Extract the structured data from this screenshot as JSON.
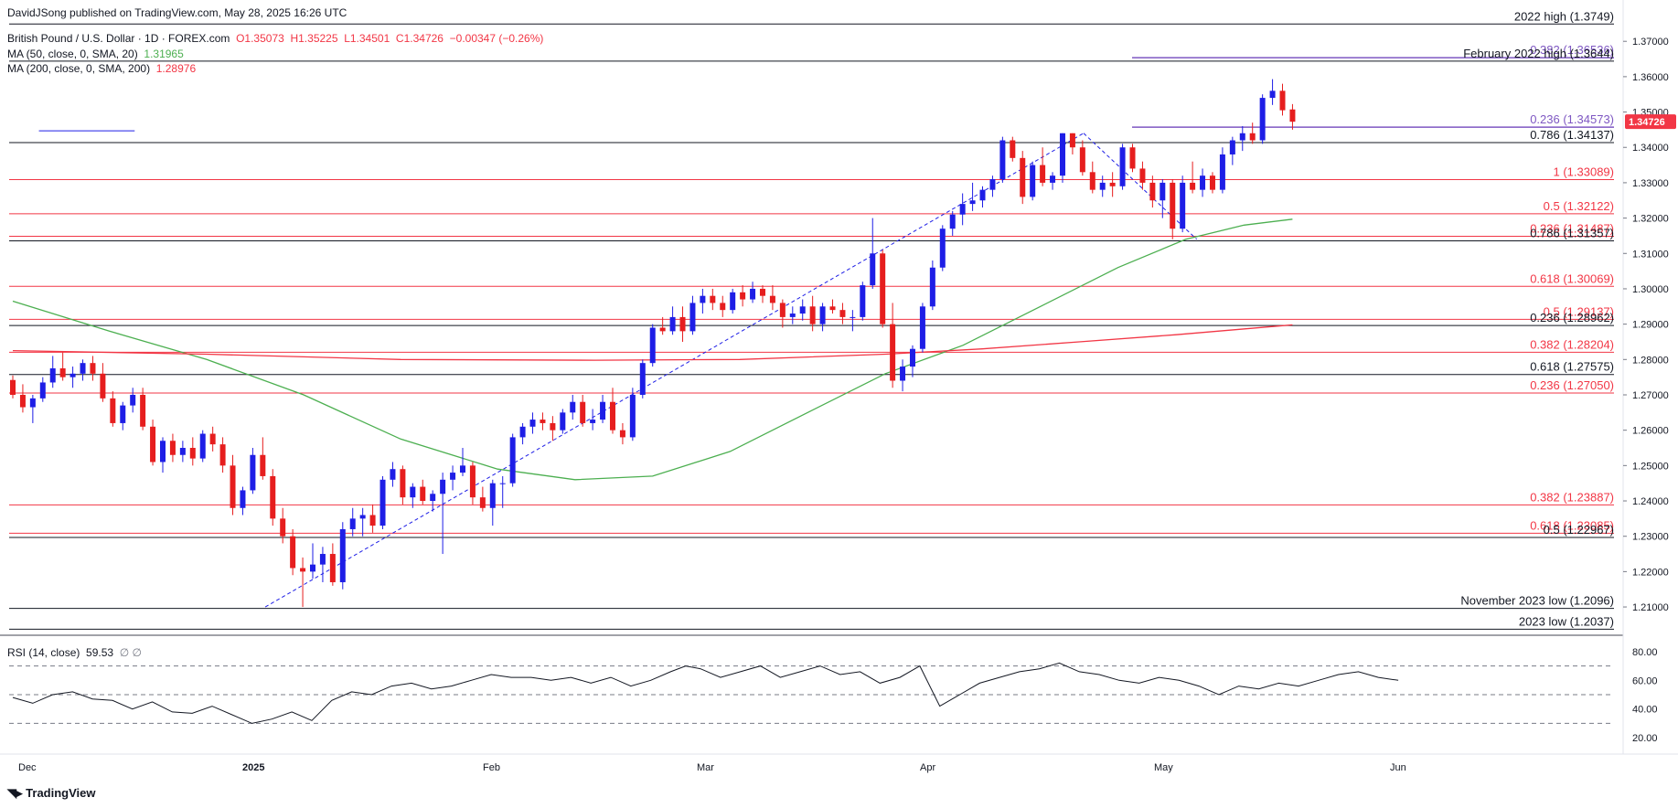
{
  "header": {
    "published": "DavidJSong published on TradingView.com, May 28, 2025 16:26 UTC",
    "symbol": "British Pound / U.S. Dollar · 1D · FOREX.com",
    "ohlc": {
      "o": "O1.35073",
      "h": "H1.35225",
      "l": "L1.34501",
      "c": "C1.34726",
      "chg": "−0.00347 (−0.26%)"
    },
    "ma50": {
      "label": "MA (50, close, 0, SMA, 20)",
      "value": "1.31965"
    },
    "ma200": {
      "label": "MA (200, close, 0, SMA, 200)",
      "value": "1.28976"
    },
    "rsi": {
      "label": "RSI (14, close)",
      "value": "59.53",
      "extra": "∅ ∅"
    }
  },
  "footer": {
    "brand": "TradingView"
  },
  "colors": {
    "up": "#1e1ee6",
    "down": "#e61e1e",
    "ma50": "#4caf50",
    "ma200": "#f23645",
    "fib": "#7e57c2",
    "text": "#131722",
    "price_tag": "#f23645"
  },
  "chart_data": {
    "type": "candlestick",
    "title": "British Pound / U.S. Dollar",
    "x_axis_labels": [
      "Dec",
      "2025",
      "Feb",
      "Mar",
      "Apr",
      "May",
      "Jun"
    ],
    "y_range": [
      1.202,
      1.376
    ],
    "y_ticks": [
      "1.21000",
      "1.22000",
      "1.23000",
      "1.24000",
      "1.25000",
      "1.26000",
      "1.27000",
      "1.28000",
      "1.29000",
      "1.30000",
      "1.31000",
      "1.32000",
      "1.33000",
      "1.34000",
      "1.35000",
      "1.36000",
      "1.37000"
    ],
    "last_price": "1.34726",
    "candles": [
      [
        1.2742,
        1.2755,
        1.269,
        1.27
      ],
      [
        1.27,
        1.273,
        1.265,
        1.2665
      ],
      [
        1.2665,
        1.27,
        1.262,
        1.269
      ],
      [
        1.269,
        1.275,
        1.268,
        1.2735
      ],
      [
        1.2735,
        1.281,
        1.272,
        1.2775
      ],
      [
        1.2775,
        1.282,
        1.274,
        1.275
      ],
      [
        1.275,
        1.278,
        1.272,
        1.276
      ],
      [
        1.276,
        1.28,
        1.274,
        1.279
      ],
      [
        1.279,
        1.281,
        1.274,
        1.276
      ],
      [
        1.276,
        1.279,
        1.268,
        1.269
      ],
      [
        1.269,
        1.271,
        1.261,
        1.262
      ],
      [
        1.262,
        1.268,
        1.26,
        1.267
      ],
      [
        1.267,
        1.272,
        1.265,
        1.27
      ],
      [
        1.27,
        1.272,
        1.26,
        1.261
      ],
      [
        1.261,
        1.263,
        1.25,
        1.251
      ],
      [
        1.251,
        1.258,
        1.248,
        1.257
      ],
      [
        1.257,
        1.259,
        1.251,
        1.253
      ],
      [
        1.253,
        1.257,
        1.251,
        1.255
      ],
      [
        1.255,
        1.258,
        1.25,
        1.252
      ],
      [
        1.252,
        1.26,
        1.251,
        1.259
      ],
      [
        1.259,
        1.261,
        1.254,
        1.256
      ],
      [
        1.256,
        1.258,
        1.248,
        1.25
      ],
      [
        1.25,
        1.253,
        1.236,
        1.238
      ],
      [
        1.238,
        1.244,
        1.236,
        1.243
      ],
      [
        1.243,
        1.255,
        1.242,
        1.253
      ],
      [
        1.253,
        1.258,
        1.246,
        1.247
      ],
      [
        1.247,
        1.249,
        1.233,
        1.235
      ],
      [
        1.235,
        1.238,
        1.228,
        1.23
      ],
      [
        1.23,
        1.232,
        1.219,
        1.221
      ],
      [
        1.221,
        1.224,
        1.21,
        1.22
      ],
      [
        1.22,
        1.228,
        1.218,
        1.222
      ],
      [
        1.222,
        1.227,
        1.217,
        1.225
      ],
      [
        1.225,
        1.228,
        1.216,
        1.217
      ],
      [
        1.217,
        1.234,
        1.215,
        1.232
      ],
      [
        1.232,
        1.238,
        1.23,
        1.235
      ],
      [
        1.235,
        1.238,
        1.23,
        1.236
      ],
      [
        1.236,
        1.239,
        1.231,
        1.233
      ],
      [
        1.233,
        1.247,
        1.232,
        1.246
      ],
      [
        1.246,
        1.251,
        1.244,
        1.249
      ],
      [
        1.249,
        1.25,
        1.239,
        1.241
      ],
      [
        1.241,
        1.245,
        1.238,
        1.244
      ],
      [
        1.244,
        1.246,
        1.239,
        1.24
      ],
      [
        1.24,
        1.243,
        1.237,
        1.242
      ],
      [
        1.242,
        1.248,
        1.225,
        1.246
      ],
      [
        1.246,
        1.25,
        1.243,
        1.248
      ],
      [
        1.248,
        1.255,
        1.247,
        1.25
      ],
      [
        1.25,
        1.251,
        1.239,
        1.241
      ],
      [
        1.241,
        1.244,
        1.237,
        1.238
      ],
      [
        1.238,
        1.246,
        1.233,
        1.245
      ],
      [
        1.245,
        1.247,
        1.238,
        1.245
      ],
      [
        1.245,
        1.259,
        1.244,
        1.258
      ],
      [
        1.258,
        1.262,
        1.256,
        1.261
      ],
      [
        1.261,
        1.265,
        1.259,
        1.263
      ],
      [
        1.263,
        1.265,
        1.26,
        1.262
      ],
      [
        1.262,
        1.264,
        1.257,
        1.26
      ],
      [
        1.26,
        1.266,
        1.259,
        1.265
      ],
      [
        1.265,
        1.27,
        1.263,
        1.268
      ],
      [
        1.268,
        1.27,
        1.261,
        1.262
      ],
      [
        1.262,
        1.266,
        1.26,
        1.263
      ],
      [
        1.263,
        1.27,
        1.262,
        1.268
      ],
      [
        1.268,
        1.272,
        1.259,
        1.26
      ],
      [
        1.26,
        1.262,
        1.256,
        1.258
      ],
      [
        1.258,
        1.272,
        1.257,
        1.27
      ],
      [
        1.27,
        1.28,
        1.269,
        1.279
      ],
      [
        1.279,
        1.29,
        1.278,
        1.289
      ],
      [
        1.289,
        1.292,
        1.287,
        1.288
      ],
      [
        1.288,
        1.295,
        1.287,
        1.292
      ],
      [
        1.292,
        1.295,
        1.285,
        1.288
      ],
      [
        1.288,
        1.298,
        1.287,
        1.296
      ],
      [
        1.296,
        1.3,
        1.293,
        1.298
      ],
      [
        1.298,
        1.3,
        1.294,
        1.296
      ],
      [
        1.296,
        1.298,
        1.292,
        1.294
      ],
      [
        1.294,
        1.3,
        1.293,
        1.299
      ],
      [
        1.299,
        1.301,
        1.295,
        1.297
      ],
      [
        1.297,
        1.302,
        1.296,
        1.3
      ],
      [
        1.3,
        1.301,
        1.296,
        1.298
      ],
      [
        1.298,
        1.301,
        1.294,
        1.296
      ],
      [
        1.296,
        1.297,
        1.289,
        1.292
      ],
      [
        1.292,
        1.295,
        1.29,
        1.293
      ],
      [
        1.293,
        1.297,
        1.291,
        1.295
      ],
      [
        1.295,
        1.298,
        1.288,
        1.29
      ],
      [
        1.29,
        1.296,
        1.288,
        1.295
      ],
      [
        1.295,
        1.297,
        1.293,
        1.294
      ],
      [
        1.294,
        1.296,
        1.29,
        1.292
      ],
      [
        1.292,
        1.294,
        1.288,
        1.292
      ],
      [
        1.292,
        1.302,
        1.291,
        1.301
      ],
      [
        1.301,
        1.32,
        1.3,
        1.31
      ],
      [
        1.31,
        1.311,
        1.289,
        1.29
      ],
      [
        1.29,
        1.296,
        1.272,
        1.274
      ],
      [
        1.274,
        1.28,
        1.271,
        1.278
      ],
      [
        1.278,
        1.284,
        1.275,
        1.283
      ],
      [
        1.283,
        1.296,
        1.282,
        1.295
      ],
      [
        1.295,
        1.308,
        1.294,
        1.306
      ],
      [
        1.306,
        1.318,
        1.305,
        1.317
      ],
      [
        1.317,
        1.322,
        1.315,
        1.321
      ],
      [
        1.321,
        1.327,
        1.318,
        1.324
      ],
      [
        1.324,
        1.33,
        1.322,
        1.325
      ],
      [
        1.325,
        1.329,
        1.323,
        1.328
      ],
      [
        1.328,
        1.332,
        1.326,
        1.331
      ],
      [
        1.331,
        1.343,
        1.33,
        1.342
      ],
      [
        1.342,
        1.343,
        1.336,
        1.337
      ],
      [
        1.337,
        1.339,
        1.324,
        1.326
      ],
      [
        1.326,
        1.336,
        1.325,
        1.335
      ],
      [
        1.335,
        1.34,
        1.329,
        1.33
      ],
      [
        1.33,
        1.333,
        1.328,
        1.332
      ],
      [
        1.332,
        1.344,
        1.33,
        1.344
      ],
      [
        1.344,
        1.344,
        1.338,
        1.34
      ],
      [
        1.34,
        1.342,
        1.332,
        1.333
      ],
      [
        1.333,
        1.336,
        1.327,
        1.328
      ],
      [
        1.328,
        1.332,
        1.326,
        1.33
      ],
      [
        1.33,
        1.333,
        1.326,
        1.329
      ],
      [
        1.329,
        1.341,
        1.328,
        1.34
      ],
      [
        1.34,
        1.341,
        1.333,
        1.334
      ],
      [
        1.334,
        1.336,
        1.328,
        1.33
      ],
      [
        1.33,
        1.332,
        1.323,
        1.325
      ],
      [
        1.325,
        1.331,
        1.32,
        1.33
      ],
      [
        1.33,
        1.331,
        1.314,
        1.317
      ],
      [
        1.317,
        1.332,
        1.316,
        1.33
      ],
      [
        1.33,
        1.336,
        1.327,
        1.328
      ],
      [
        1.328,
        1.334,
        1.326,
        1.332
      ],
      [
        1.332,
        1.333,
        1.327,
        1.328
      ],
      [
        1.328,
        1.34,
        1.327,
        1.338
      ],
      [
        1.338,
        1.343,
        1.335,
        1.342
      ],
      [
        1.342,
        1.346,
        1.339,
        1.344
      ],
      [
        1.344,
        1.347,
        1.341,
        1.342
      ],
      [
        1.342,
        1.355,
        1.341,
        1.354
      ],
      [
        1.354,
        1.3593,
        1.352,
        1.356
      ],
      [
        1.356,
        1.358,
        1.349,
        1.3505
      ],
      [
        1.35073,
        1.35225,
        1.34501,
        1.34726
      ]
    ],
    "ma50": [
      [
        0,
        1.2965
      ],
      [
        10,
        1.288
      ],
      [
        20,
        1.28
      ],
      [
        30,
        1.27
      ],
      [
        40,
        1.2575
      ],
      [
        50,
        1.249
      ],
      [
        58,
        1.246
      ],
      [
        66,
        1.247
      ],
      [
        74,
        1.254
      ],
      [
        82,
        1.265
      ],
      [
        90,
        1.276
      ],
      [
        98,
        1.284
      ],
      [
        106,
        1.295
      ],
      [
        114,
        1.306
      ],
      [
        121,
        1.314
      ],
      [
        127,
        1.318
      ],
      [
        132,
        1.3197
      ]
    ],
    "ma200": [
      [
        0,
        1.2825
      ],
      [
        20,
        1.2815
      ],
      [
        40,
        1.28
      ],
      [
        60,
        1.2798
      ],
      [
        75,
        1.28
      ],
      [
        90,
        1.2815
      ],
      [
        100,
        1.283
      ],
      [
        110,
        1.285
      ],
      [
        120,
        1.287
      ],
      [
        132,
        1.2898
      ]
    ],
    "levels": [
      {
        "label": "2022 high (1.3749)",
        "value": 1.3749,
        "color": "#131722"
      },
      {
        "label": "0.382 (1.36536)",
        "value": 1.36536,
        "color": "#7e57c2"
      },
      {
        "label": "February 2022 high (1.3644)",
        "value": 1.3644,
        "color": "#131722"
      },
      {
        "label": "0.236 (1.34573)",
        "value": 1.34573,
        "color": "#7e57c2"
      },
      {
        "label": "0.786 (1.34137)",
        "value": 1.34137,
        "color": "#131722"
      },
      {
        "label": "1 (1.33089)",
        "value": 1.33089,
        "color": "#f23645"
      },
      {
        "label": "0.5 (1.32122)",
        "value": 1.32122,
        "color": "#f23645"
      },
      {
        "label": "0.236 (1.31487)",
        "value": 1.31487,
        "color": "#f23645"
      },
      {
        "label": "0.786 (1.31357)",
        "value": 1.31357,
        "color": "#131722"
      },
      {
        "label": "0.618 (1.30069)",
        "value": 1.30069,
        "color": "#f23645"
      },
      {
        "label": "0.5 (1.29137)",
        "value": 1.29137,
        "color": "#f23645"
      },
      {
        "label": "0.236 (1.28962)",
        "value": 1.28962,
        "color": "#131722"
      },
      {
        "label": "0.382 (1.28204)",
        "value": 1.28204,
        "color": "#f23645"
      },
      {
        "label": "0.618 (1.27575)",
        "value": 1.27575,
        "color": "#131722"
      },
      {
        "label": "0.236 (1.27050)",
        "value": 1.2705,
        "color": "#f23645"
      },
      {
        "label": "0.382 (1.23887)",
        "value": 1.23887,
        "color": "#f23645"
      },
      {
        "label": "0.618 (1.23085)",
        "value": 1.23085,
        "color": "#f23645"
      },
      {
        "label": "0.5 (1.22967)",
        "value": 1.22967,
        "color": "#131722"
      },
      {
        "label": "November 2023 low (1.2096)",
        "value": 1.2096,
        "color": "#131722"
      },
      {
        "label": "2023 low (1.2037)",
        "value": 1.2037,
        "color": "#131722"
      }
    ],
    "rsi": {
      "y_range": [
        15,
        85
      ],
      "y_ticks": [
        "20.00",
        "40.00",
        "60.00",
        "80.00"
      ],
      "levels": [
        30,
        50,
        70
      ],
      "values": [
        [
          0,
          48
        ],
        [
          4,
          44
        ],
        [
          8,
          50
        ],
        [
          12,
          52
        ],
        [
          16,
          47
        ],
        [
          20,
          46
        ],
        [
          24,
          40
        ],
        [
          28,
          45
        ],
        [
          32,
          38
        ],
        [
          36,
          37
        ],
        [
          40,
          42
        ],
        [
          44,
          36
        ],
        [
          48,
          30
        ],
        [
          52,
          33
        ],
        [
          56,
          38
        ],
        [
          60,
          32
        ],
        [
          64,
          46
        ],
        [
          68,
          52
        ],
        [
          72,
          50
        ],
        [
          76,
          56
        ],
        [
          80,
          58
        ],
        [
          84,
          54
        ],
        [
          88,
          56
        ],
        [
          92,
          60
        ],
        [
          96,
          64
        ],
        [
          100,
          62
        ],
        [
          104,
          62
        ],
        [
          108,
          60
        ],
        [
          112,
          62
        ],
        [
          116,
          58
        ],
        [
          120,
          62
        ],
        [
          124,
          56
        ],
        [
          128,
          60
        ],
        [
          132,
          66
        ],
        [
          135,
          70
        ],
        [
          138,
          68
        ],
        [
          142,
          62
        ],
        [
          146,
          66
        ],
        [
          150,
          70
        ],
        [
          154,
          62
        ],
        [
          158,
          66
        ],
        [
          162,
          70
        ],
        [
          166,
          64
        ],
        [
          170,
          66
        ],
        [
          174,
          58
        ],
        [
          178,
          62
        ],
        [
          182,
          70
        ],
        [
          186,
          42
        ],
        [
          190,
          50
        ],
        [
          194,
          58
        ],
        [
          198,
          62
        ],
        [
          202,
          66
        ],
        [
          206,
          68
        ],
        [
          210,
          72
        ],
        [
          214,
          66
        ],
        [
          218,
          64
        ],
        [
          222,
          60
        ],
        [
          226,
          58
        ],
        [
          230,
          62
        ],
        [
          234,
          60
        ],
        [
          238,
          56
        ],
        [
          242,
          50
        ],
        [
          246,
          56
        ],
        [
          250,
          54
        ],
        [
          254,
          58
        ],
        [
          258,
          56
        ],
        [
          262,
          60
        ],
        [
          266,
          64
        ],
        [
          270,
          66
        ],
        [
          274,
          62
        ],
        [
          278,
          60
        ]
      ]
    }
  }
}
